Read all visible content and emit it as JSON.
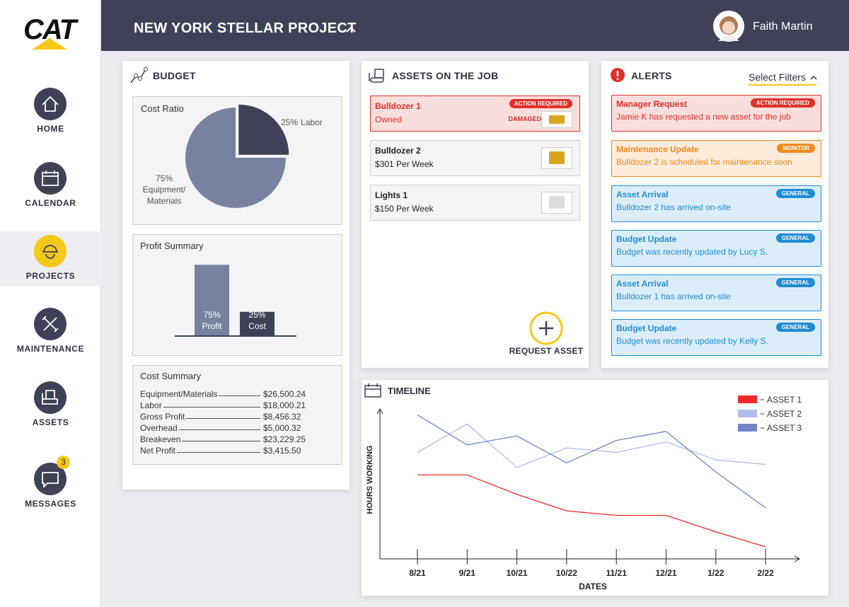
{
  "header": {
    "logo": "CAT",
    "project": "NEW YORK STELLAR PROJECT",
    "user": "Faith Martin"
  },
  "nav": [
    {
      "label": "HOME"
    },
    {
      "label": "CALENDAR"
    },
    {
      "label": "PROJECTS",
      "active": true
    },
    {
      "label": "MAINTENANCE"
    },
    {
      "label": "ASSETS"
    },
    {
      "label": "MESSAGES",
      "badge": 3
    }
  ],
  "budget": {
    "title": "BUDGET",
    "cost_summary": {
      "title": "Cost Summary",
      "rows": [
        [
          "Equipment/Materials",
          "$26,500.24"
        ],
        [
          "Labor",
          "$18,000.21"
        ],
        [
          "Gross Profit",
          "$8,456.32"
        ],
        [
          "Overhead",
          "$5,000.32"
        ],
        [
          "Breakeven",
          "$23,229.25"
        ],
        [
          "Net Profit",
          "$3,415.50"
        ]
      ]
    }
  },
  "assets": {
    "title": "ASSETS ON THE JOB",
    "items": [
      {
        "name": "Bulldozer 1",
        "detail": "Owned",
        "tag": "ACTION REQUIRED",
        "status": "DAMAGED",
        "color": "#e0302a"
      },
      {
        "name": "Bulldozer 2",
        "detail": "$301 Per Week"
      },
      {
        "name": "Lights 1",
        "detail": "$150 Per Week"
      }
    ],
    "action": "REQUEST ASSET"
  },
  "alerts": {
    "title": "ALERTS",
    "filter": "Select Filters",
    "items": [
      {
        "title": "Manager Request",
        "text": "Jamie K has requested a new asset for the job",
        "tag": "ACTION REQUIRED",
        "color": "#e0302a"
      },
      {
        "title": "Maintenance Update",
        "text": "Bulldozer 2 is scheduled for maintenance soon",
        "tag": "MONITOR",
        "color": "#f08a1c"
      },
      {
        "title": "Asset Arrival",
        "text": "Bulldozer 2 has arrived on-site",
        "tag": "GENERAL",
        "color": "#1f8dd6"
      },
      {
        "title": "Budget Update",
        "text": "Budget was recently updated by Lucy S.",
        "tag": "GENERAL",
        "color": "#1f8dd6"
      },
      {
        "title": "Asset Arrival",
        "text": "Bulldozer 1 has arrived on-site",
        "tag": "GENERAL",
        "color": "#1f8dd6"
      },
      {
        "title": "Budget Update",
        "text": "Budget was recently updated by Kelly S.",
        "tag": "GENERAL",
        "color": "#1f8dd6"
      }
    ]
  },
  "chart_data": [
    {
      "type": "pie",
      "title": "Cost Ratio",
      "categories": [
        "Labor",
        "Equipment/ Materials"
      ],
      "values": [
        25,
        75
      ],
      "value_labels": [
        "25%",
        "75%"
      ],
      "colors": [
        "#3f4257",
        "#76829f"
      ]
    },
    {
      "type": "bar",
      "title": "Profit Summary",
      "categories": [
        "Profit",
        "Cost"
      ],
      "values": [
        75,
        25
      ],
      "value_labels": [
        "75%",
        "25%"
      ],
      "colors": [
        "#76829f",
        "#3f4257"
      ],
      "ylim": [
        0,
        100
      ]
    },
    {
      "type": "line",
      "title": "TIMELINE",
      "x_label": "DATES",
      "y_label": "HOURS WORKING",
      "categories": [
        "8/21",
        "9/21",
        "10/21",
        "10/22",
        "11/21",
        "12/21",
        "1/22",
        "2/22"
      ],
      "ylim": [
        0,
        100
      ],
      "legend": "upper right",
      "series": [
        {
          "name": "ASSET 1",
          "color": "#ee2b2b",
          "values": [
            56,
            56,
            43,
            32,
            29,
            29,
            18,
            8
          ]
        },
        {
          "name": "ASSET 2",
          "color": "#aebdf0",
          "values": [
            71,
            90,
            61,
            74,
            71,
            78,
            66,
            63
          ]
        },
        {
          "name": "ASSET 3",
          "color": "#6f85c9",
          "values": [
            96,
            76,
            82,
            64,
            79,
            85,
            58,
            34
          ]
        }
      ]
    }
  ]
}
